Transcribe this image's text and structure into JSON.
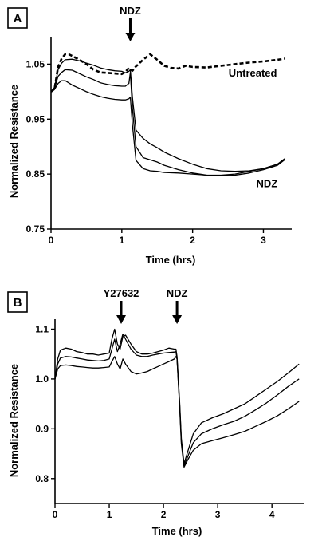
{
  "chart_data": [
    {
      "panel": "A",
      "type": "line",
      "xlabel": "Time (hrs)",
      "ylabel": "Normalized Resistance",
      "xlim": [
        0,
        3.4
      ],
      "ylim": [
        0.75,
        1.1
      ],
      "xticks": [
        0,
        1,
        2,
        3
      ],
      "yticks": [
        0.75,
        0.85,
        0.95,
        1.05
      ],
      "ytick_labels": [
        "0.75",
        "0.85",
        "0.95",
        "1.05"
      ],
      "grid": false,
      "annotations": [
        {
          "text": "NDZ",
          "kind": "arrow",
          "x": 1.12
        },
        {
          "text": "Untreated",
          "kind": "label",
          "x": 2.85,
          "y": 1.033
        },
        {
          "text": "NDZ",
          "kind": "label",
          "x": 3.05,
          "y": 0.832
        }
      ],
      "series": [
        {
          "style": "dashed",
          "x": [
            0,
            0.05,
            0.1,
            0.15,
            0.2,
            0.25,
            0.3,
            0.4,
            0.5,
            0.6,
            0.7,
            0.8,
            0.9,
            1.0,
            1.05,
            1.1,
            1.15,
            1.2,
            1.3,
            1.4,
            1.5,
            1.6,
            1.7,
            1.8,
            1.9,
            2.0,
            2.2,
            2.4,
            2.6,
            2.8,
            3.0,
            3.2,
            3.3
          ],
          "y": [
            1.0,
            1.005,
            1.045,
            1.06,
            1.068,
            1.068,
            1.065,
            1.058,
            1.05,
            1.04,
            1.035,
            1.034,
            1.033,
            1.032,
            1.036,
            1.043,
            1.038,
            1.046,
            1.058,
            1.068,
            1.058,
            1.047,
            1.043,
            1.042,
            1.047,
            1.045,
            1.044,
            1.047,
            1.05,
            1.053,
            1.055,
            1.058,
            1.06
          ]
        },
        {
          "style": "solid",
          "x": [
            0,
            0.05,
            0.1,
            0.15,
            0.2,
            0.3,
            0.4,
            0.5,
            0.6,
            0.7,
            0.8,
            0.9,
            1.0,
            1.05,
            1.1,
            1.12,
            1.15,
            1.2,
            1.3,
            1.4,
            1.5,
            1.6,
            1.8,
            2.0,
            2.2,
            2.4,
            2.6,
            2.8,
            3.0,
            3.2,
            3.3
          ],
          "y": [
            1.0,
            1.008,
            1.04,
            1.052,
            1.058,
            1.059,
            1.056,
            1.052,
            1.048,
            1.043,
            1.04,
            1.038,
            1.037,
            1.034,
            1.037,
            1.04,
            0.99,
            0.93,
            0.915,
            0.905,
            0.898,
            0.89,
            0.878,
            0.868,
            0.86,
            0.856,
            0.855,
            0.856,
            0.86,
            0.868,
            0.877
          ]
        },
        {
          "style": "solid",
          "x": [
            0,
            0.05,
            0.1,
            0.15,
            0.2,
            0.3,
            0.4,
            0.5,
            0.6,
            0.7,
            0.8,
            0.9,
            1.0,
            1.05,
            1.1,
            1.12,
            1.15,
            1.2,
            1.3,
            1.4,
            1.5,
            1.6,
            1.8,
            2.0,
            2.2,
            2.4,
            2.6,
            2.8,
            3.0,
            3.2,
            3.3
          ],
          "y": [
            1.0,
            1.006,
            1.028,
            1.035,
            1.04,
            1.039,
            1.033,
            1.027,
            1.022,
            1.016,
            1.013,
            1.011,
            1.01,
            1.01,
            1.015,
            1.035,
            0.97,
            0.9,
            0.88,
            0.876,
            0.872,
            0.866,
            0.858,
            0.852,
            0.848,
            0.848,
            0.85,
            0.855,
            0.86,
            0.868,
            0.878
          ]
        },
        {
          "style": "solid",
          "x": [
            0,
            0.05,
            0.1,
            0.15,
            0.2,
            0.3,
            0.4,
            0.5,
            0.6,
            0.7,
            0.8,
            0.9,
            1.0,
            1.05,
            1.1,
            1.12,
            1.15,
            1.2,
            1.3,
            1.4,
            1.5,
            1.6,
            1.8,
            2.0,
            2.2,
            2.4,
            2.6,
            2.8,
            3.0,
            3.2,
            3.3
          ],
          "y": [
            1.0,
            1.004,
            1.015,
            1.02,
            1.02,
            1.012,
            1.006,
            1.0,
            0.995,
            0.991,
            0.988,
            0.986,
            0.985,
            0.985,
            0.987,
            0.99,
            0.94,
            0.875,
            0.86,
            0.856,
            0.855,
            0.853,
            0.852,
            0.85,
            0.848,
            0.847,
            0.848,
            0.852,
            0.858,
            0.866,
            0.876
          ]
        }
      ]
    },
    {
      "panel": "B",
      "type": "line",
      "xlabel": "Time (hrs)",
      "ylabel": "Normalized Resistance",
      "xlim": [
        0,
        4.6
      ],
      "ylim": [
        0.75,
        1.12
      ],
      "xticks": [
        0,
        1,
        2,
        3,
        4
      ],
      "yticks": [
        0.8,
        0.9,
        1.0,
        1.1
      ],
      "ytick_labels": [
        "0.8",
        "0.9",
        "1.0",
        "1.1"
      ],
      "grid": false,
      "annotations": [
        {
          "text": "Y27632",
          "kind": "arrow",
          "x": 1.22
        },
        {
          "text": "NDZ",
          "kind": "arrow",
          "x": 2.25
        }
      ],
      "series": [
        {
          "style": "solid",
          "x": [
            0,
            0.05,
            0.1,
            0.2,
            0.3,
            0.4,
            0.5,
            0.6,
            0.7,
            0.8,
            0.9,
            1.0,
            1.05,
            1.1,
            1.15,
            1.2,
            1.25,
            1.3,
            1.4,
            1.5,
            1.6,
            1.7,
            1.8,
            1.9,
            2.0,
            2.1,
            2.2,
            2.23,
            2.25,
            2.3,
            2.33,
            2.38,
            2.45,
            2.55,
            2.7,
            2.9,
            3.1,
            3.3,
            3.5,
            3.7,
            3.9,
            4.1,
            4.3,
            4.5
          ],
          "y": [
            1.0,
            1.04,
            1.058,
            1.062,
            1.06,
            1.055,
            1.053,
            1.05,
            1.05,
            1.048,
            1.05,
            1.052,
            1.08,
            1.1,
            1.07,
            1.06,
            1.085,
            1.088,
            1.07,
            1.055,
            1.05,
            1.05,
            1.052,
            1.055,
            1.058,
            1.062,
            1.06,
            1.06,
            1.045,
            0.95,
            0.88,
            0.83,
            0.855,
            0.89,
            0.912,
            0.922,
            0.93,
            0.94,
            0.95,
            0.965,
            0.98,
            0.995,
            1.012,
            1.03
          ]
        },
        {
          "style": "solid",
          "x": [
            0,
            0.05,
            0.1,
            0.2,
            0.3,
            0.4,
            0.5,
            0.6,
            0.7,
            0.8,
            0.9,
            1.0,
            1.05,
            1.1,
            1.15,
            1.2,
            1.25,
            1.3,
            1.4,
            1.5,
            1.6,
            1.7,
            1.8,
            1.9,
            2.0,
            2.1,
            2.2,
            2.23,
            2.25,
            2.3,
            2.33,
            2.38,
            2.45,
            2.55,
            2.7,
            2.9,
            3.1,
            3.3,
            3.5,
            3.7,
            3.9,
            4.1,
            4.3,
            4.5
          ],
          "y": [
            1.0,
            1.03,
            1.042,
            1.045,
            1.044,
            1.042,
            1.04,
            1.038,
            1.037,
            1.036,
            1.037,
            1.04,
            1.06,
            1.08,
            1.055,
            1.07,
            1.09,
            1.08,
            1.06,
            1.048,
            1.045,
            1.045,
            1.048,
            1.05,
            1.052,
            1.053,
            1.054,
            1.055,
            1.04,
            0.945,
            0.875,
            0.826,
            0.845,
            0.872,
            0.89,
            0.9,
            0.908,
            0.915,
            0.925,
            0.938,
            0.952,
            0.968,
            0.985,
            1.0
          ]
        },
        {
          "style": "solid",
          "x": [
            0,
            0.05,
            0.1,
            0.2,
            0.3,
            0.4,
            0.5,
            0.6,
            0.7,
            0.8,
            0.9,
            1.0,
            1.05,
            1.1,
            1.15,
            1.2,
            1.25,
            1.3,
            1.4,
            1.5,
            1.6,
            1.7,
            1.8,
            1.9,
            2.0,
            2.1,
            2.2,
            2.23,
            2.25,
            2.3,
            2.33,
            2.38,
            2.45,
            2.55,
            2.7,
            2.9,
            3.1,
            3.3,
            3.5,
            3.7,
            3.9,
            4.1,
            4.3,
            4.5
          ],
          "y": [
            1.0,
            1.02,
            1.027,
            1.028,
            1.027,
            1.025,
            1.024,
            1.023,
            1.022,
            1.022,
            1.023,
            1.024,
            1.035,
            1.045,
            1.03,
            1.02,
            1.04,
            1.03,
            1.015,
            1.01,
            1.012,
            1.015,
            1.02,
            1.025,
            1.03,
            1.035,
            1.04,
            1.045,
            1.04,
            0.94,
            0.87,
            0.823,
            0.838,
            0.857,
            0.87,
            0.876,
            0.882,
            0.888,
            0.895,
            0.905,
            0.915,
            0.926,
            0.94,
            0.955
          ]
        }
      ]
    }
  ]
}
